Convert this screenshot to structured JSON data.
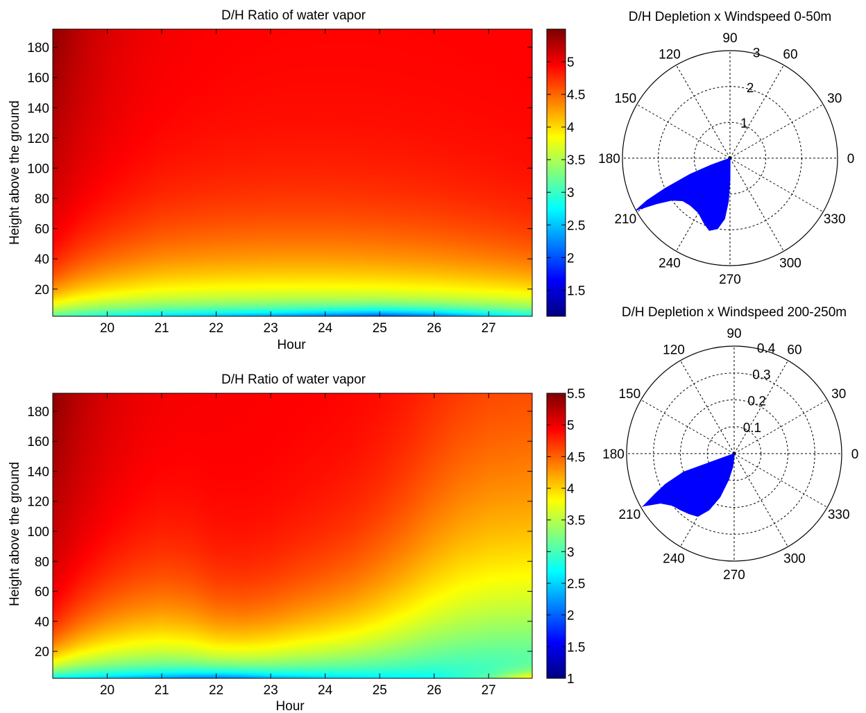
{
  "chart_data": [
    {
      "type": "heatmap",
      "title": "D/H Ratio of water vapor",
      "xlabel": "Hour",
      "ylabel": "Height above the ground",
      "xlim": [
        19,
        27.8
      ],
      "ylim": [
        2,
        192
      ],
      "x_ticks": [
        20,
        21,
        22,
        23,
        24,
        25,
        26,
        27
      ],
      "y_ticks": [
        20,
        40,
        60,
        80,
        100,
        120,
        140,
        160,
        180
      ],
      "colormap": "jet",
      "colorbar": {
        "range": [
          1.1,
          5.5
        ],
        "ticks": [
          1.5,
          2,
          2.5,
          3,
          3.5,
          4,
          4.5,
          5
        ]
      },
      "surface": {
        "base": 3.05,
        "top": 4.95,
        "edge": 5.45,
        "bl_height": [
          [
            19.0,
            20
          ],
          [
            19.5,
            26
          ],
          [
            20.0,
            30
          ],
          [
            20.5,
            33
          ],
          [
            21.0,
            36
          ],
          [
            22.0,
            38
          ],
          [
            23.0,
            39
          ],
          [
            24.0,
            39
          ],
          [
            25.0,
            38
          ],
          [
            26.0,
            36
          ],
          [
            27.0,
            33
          ],
          [
            27.8,
            30
          ]
        ],
        "surface_dip": [
          [
            19.0,
            0.2
          ],
          [
            20.0,
            0.6
          ],
          [
            21.0,
            0.9
          ],
          [
            22.0,
            1.1
          ],
          [
            23.0,
            1.3
          ],
          [
            24.0,
            1.6
          ],
          [
            25.0,
            1.9
          ],
          [
            26.0,
            1.6
          ],
          [
            27.0,
            1.0
          ],
          [
            27.8,
            0.6
          ]
        ],
        "overrides": []
      }
    },
    {
      "type": "heatmap",
      "title": "D/H Ratio of water vapor",
      "xlabel": "Hour",
      "ylabel": "Height above the ground",
      "xlim": [
        19,
        27.8
      ],
      "ylim": [
        2,
        192
      ],
      "x_ticks": [
        20,
        21,
        22,
        23,
        24,
        25,
        26,
        27
      ],
      "y_ticks": [
        20,
        40,
        60,
        80,
        100,
        120,
        140,
        160,
        180
      ],
      "colormap": "jet",
      "colorbar": {
        "range": [
          1.0,
          5.5
        ],
        "ticks": [
          1,
          1.5,
          2,
          2.5,
          3,
          3.5,
          4,
          4.5,
          5,
          5.5
        ]
      },
      "surface": {
        "base": 2.7,
        "top": 4.95,
        "edge": 5.45,
        "bl_height": [
          [
            19.0,
            20
          ],
          [
            19.5,
            28
          ],
          [
            20.0,
            34
          ],
          [
            20.5,
            38
          ],
          [
            21.0,
            40
          ],
          [
            21.5,
            38
          ],
          [
            22.0,
            33
          ],
          [
            22.5,
            32
          ],
          [
            23.0,
            34
          ],
          [
            23.5,
            38
          ],
          [
            24.0,
            42
          ],
          [
            24.5,
            47
          ],
          [
            25.0,
            55
          ],
          [
            25.5,
            66
          ],
          [
            26.0,
            80
          ],
          [
            26.5,
            92
          ],
          [
            27.0,
            100
          ],
          [
            27.8,
            104
          ]
        ],
        "surface_dip": [
          [
            19.0,
            0.4
          ],
          [
            20.0,
            0.6
          ],
          [
            21.0,
            0.9
          ],
          [
            21.5,
            1.1
          ],
          [
            22.0,
            1.2
          ],
          [
            22.5,
            1.1
          ],
          [
            23.0,
            0.8
          ],
          [
            24.0,
            0.5
          ],
          [
            25.0,
            0.3
          ],
          [
            26.0,
            0.1
          ],
          [
            27.0,
            -0.6
          ],
          [
            27.8,
            -2.0
          ]
        ],
        "overrides": []
      }
    },
    {
      "type": "polar",
      "title": "D/H Depletion x Windspeed 0-50m",
      "rmax": 3,
      "r_ticks": [
        1,
        2,
        3
      ],
      "angle_ticks": [
        0,
        30,
        60,
        90,
        120,
        150,
        180,
        210,
        240,
        270,
        300,
        330
      ],
      "fill_color": "#0000FF",
      "series": [
        {
          "points": [
            [
              200,
              0.55
            ],
            [
              202,
              1.2
            ],
            [
              205,
              2.0
            ],
            [
              207,
              2.6
            ],
            [
              209,
              3.0
            ],
            [
              212,
              2.4
            ],
            [
              216,
              2.0
            ],
            [
              222,
              1.78
            ],
            [
              230,
              1.72
            ],
            [
              240,
              1.76
            ],
            [
              248,
              1.95
            ],
            [
              254,
              2.1
            ],
            [
              260,
              2.0
            ],
            [
              265,
              1.7
            ],
            [
              268,
              1.2
            ],
            [
              270,
              0.6
            ],
            [
              272,
              0.1
            ]
          ]
        }
      ]
    },
    {
      "type": "polar",
      "title": "D/H Depletion x Windspeed 200-250m",
      "rmax": 0.4,
      "r_ticks": [
        0.1,
        0.2,
        0.3,
        0.4
      ],
      "angle_ticks": [
        0,
        30,
        60,
        90,
        120,
        150,
        180,
        210,
        240,
        270,
        300,
        330
      ],
      "fill_color": "#0000FF",
      "series": [
        {
          "points": [
            [
              200,
              0.2
            ],
            [
              204,
              0.28
            ],
            [
              207,
              0.33
            ],
            [
              210,
              0.39
            ],
            [
              214,
              0.33
            ],
            [
              220,
              0.3
            ],
            [
              226,
              0.29
            ],
            [
              233,
              0.28
            ],
            [
              240,
              0.27
            ],
            [
              246,
              0.23
            ],
            [
              252,
              0.17
            ],
            [
              258,
              0.1
            ],
            [
              264,
              0.05
            ],
            [
              272,
              0.01
            ]
          ]
        }
      ]
    }
  ]
}
